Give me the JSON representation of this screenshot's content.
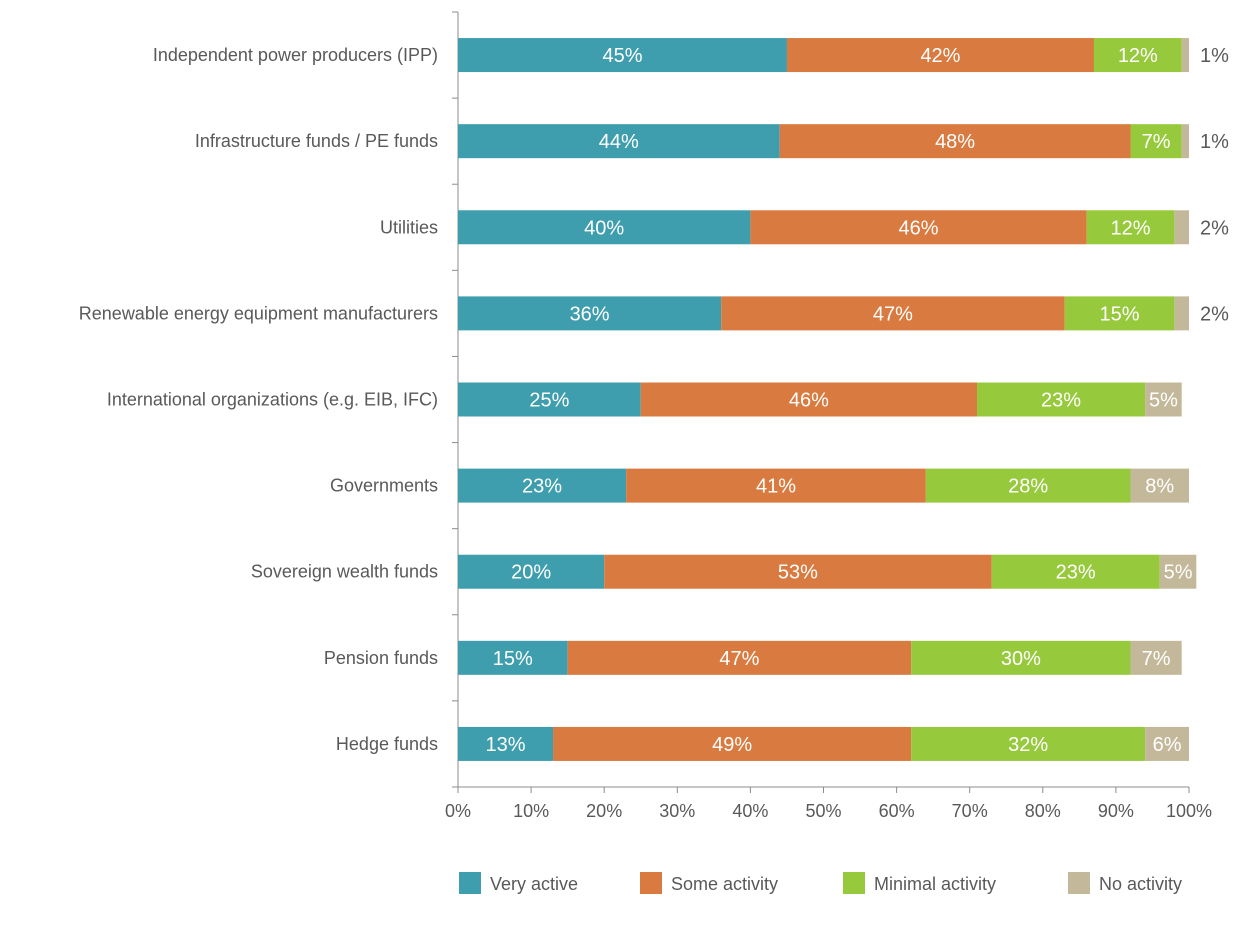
{
  "chart_data": {
    "type": "bar",
    "orientation": "horizontal",
    "stacked": true,
    "categories": [
      "Independent power producers (IPP)",
      "Infrastructure funds / PE funds",
      "Utilities",
      "Renewable energy equipment manufacturers",
      "International organizations (e.g. EIB, IFC)",
      "Governments",
      "Sovereign wealth funds",
      "Pension funds",
      "Hedge funds"
    ],
    "series": [
      {
        "name": "Very active",
        "color": "#3f9eae",
        "values": [
          45,
          44,
          40,
          36,
          25,
          23,
          20,
          15,
          13
        ]
      },
      {
        "name": "Some activity",
        "color": "#d97b40",
        "values": [
          42,
          48,
          46,
          47,
          46,
          41,
          53,
          47,
          49
        ]
      },
      {
        "name": "Minimal activity",
        "color": "#97c93d",
        "values": [
          12,
          7,
          12,
          15,
          23,
          28,
          23,
          30,
          32
        ]
      },
      {
        "name": "No activity",
        "color": "#c3b99a",
        "values": [
          1,
          1,
          2,
          2,
          5,
          8,
          5,
          7,
          6
        ]
      }
    ],
    "value_suffix": "%",
    "xlim": [
      0,
      100
    ],
    "x_ticks": [
      "0%",
      "10%",
      "20%",
      "30%",
      "40%",
      "50%",
      "60%",
      "70%",
      "80%",
      "90%",
      "100%"
    ],
    "grid": false,
    "legend_position": "bottom-right",
    "title": "",
    "xlabel": "",
    "ylabel": ""
  }
}
